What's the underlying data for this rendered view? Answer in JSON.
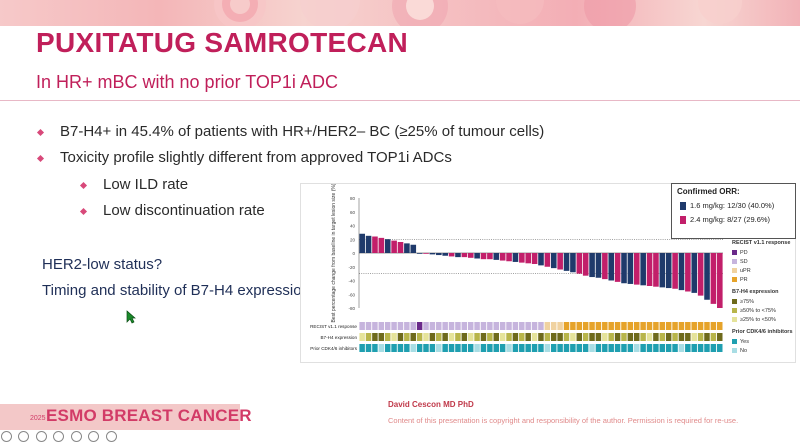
{
  "slide": {
    "title": "PUXITATUG SAMROTECAN",
    "subtitle": "In HR+ mBC with no prior TOP1i ADC",
    "bullets": [
      "B7-H4+ in 45.4% of patients with HR+/HER2– BC (≥25% of tumour cells)",
      "Toxicity profile slightly different from approved TOP1i ADCs"
    ],
    "sub_bullets": [
      "Low ILD rate",
      "Low discontinuation rate"
    ],
    "questions": [
      "HER2-low status?",
      "Timing and stability of B7-H4 expression?"
    ],
    "author": "David Cescon MD PhD",
    "copyright": "Content of this presentation is copyright and responsibility of the author. Permission is required for re-use.",
    "footer_logo": "ESMO BREAST CANCER",
    "footer_year": "2025"
  },
  "chart_data": {
    "type": "bar",
    "ylabel": "Best percentage change from baseline in target lesion size (%)",
    "ylim": [
      -80,
      80
    ],
    "yticks": [
      "80",
      "60",
      "40",
      "20",
      "0",
      "-20",
      "-40",
      "-60",
      "-80"
    ],
    "reference_lines": [
      20,
      -30
    ],
    "orr_legend": {
      "title": "Confirmed ORR:",
      "series": [
        {
          "name": "1.6 mg/kg: 12/30 (40.0%)",
          "color": "#1f3a6b"
        },
        {
          "name": "2.4 mg/kg: 8/27 (29.6%)",
          "color": "#c21f6a"
        }
      ]
    },
    "values": [
      28,
      25,
      24,
      22,
      20,
      18,
      16,
      14,
      12,
      0,
      0,
      -2,
      -3,
      -4,
      -5,
      -6,
      -6,
      -7,
      -8,
      -9,
      -9,
      -10,
      -11,
      -12,
      -13,
      -14,
      -15,
      -16,
      -18,
      -20,
      -22,
      -24,
      -26,
      -28,
      -30,
      -33,
      -35,
      -36,
      -38,
      -40,
      -42,
      -44,
      -45,
      -46,
      -47,
      -48,
      -49,
      -50,
      -51,
      -52,
      -54,
      -56,
      -58,
      -62,
      -68,
      -74,
      -80
    ],
    "dose_groups": [
      "b",
      "b",
      "p",
      "p",
      "b",
      "p",
      "p",
      "b",
      "b",
      "b",
      "p",
      "b",
      "b",
      "b",
      "p",
      "b",
      "p",
      "p",
      "b",
      "p",
      "p",
      "b",
      "p",
      "p",
      "b",
      "p",
      "p",
      "p",
      "b",
      "p",
      "b",
      "p",
      "b",
      "b",
      "p",
      "p",
      "b",
      "b",
      "p",
      "b",
      "p",
      "b",
      "b",
      "p",
      "b",
      "p",
      "p",
      "b",
      "b",
      "p",
      "b",
      "p",
      "b",
      "p",
      "b",
      "p",
      "p"
    ],
    "recist_response": [
      "SD",
      "SD",
      "SD",
      "SD",
      "SD",
      "SD",
      "SD",
      "SD",
      "SD",
      "PD",
      "SD",
      "SD",
      "SD",
      "SD",
      "SD",
      "SD",
      "SD",
      "SD",
      "SD",
      "SD",
      "SD",
      "SD",
      "SD",
      "SD",
      "SD",
      "SD",
      "SD",
      "SD",
      "SD",
      "uPR",
      "uPR",
      "uPR",
      "PR",
      "PR",
      "PR",
      "PR",
      "PR",
      "PR",
      "PR",
      "PR",
      "PR",
      "PR",
      "PR",
      "PR",
      "PR",
      "PR",
      "PR",
      "PR",
      "PR",
      "PR",
      "PR",
      "PR",
      "PR",
      "PR",
      "PR",
      "PR",
      "PR"
    ],
    "b7h4_expression": [
      "c",
      "b",
      "a",
      "a",
      "b",
      "c",
      "a",
      "b",
      "a",
      "b",
      "c",
      "a",
      "b",
      "a",
      "c",
      "b",
      "a",
      "c",
      "b",
      "a",
      "b",
      "a",
      "c",
      "b",
      "a",
      "b",
      "a",
      "c",
      "a",
      "b",
      "a",
      "a",
      "b",
      "c",
      "a",
      "b",
      "a",
      "a",
      "c",
      "b",
      "a",
      "b",
      "a",
      "a",
      "b",
      "c",
      "a",
      "b",
      "a",
      "b",
      "a",
      "a",
      "c",
      "b",
      "a",
      "b",
      "a"
    ],
    "prior_cdk46": [
      "y",
      "y",
      "y",
      "n",
      "y",
      "y",
      "y",
      "y",
      "n",
      "y",
      "y",
      "y",
      "n",
      "y",
      "y",
      "y",
      "y",
      "y",
      "n",
      "y",
      "y",
      "y",
      "y",
      "n",
      "y",
      "y",
      "y",
      "y",
      "y",
      "n",
      "y",
      "y",
      "y",
      "y",
      "y",
      "y",
      "n",
      "y",
      "y",
      "y",
      "y",
      "y",
      "y",
      "n",
      "y",
      "y",
      "y",
      "y",
      "y",
      "y",
      "n",
      "y",
      "y",
      "y",
      "y",
      "y",
      "y"
    ],
    "track_labels": [
      "RECIST v1.1 response",
      "B7-H4 expression",
      "Prior CDK4/6 inhibitors"
    ],
    "legend_groups": [
      {
        "title": "RECIST v1.1 response",
        "items": [
          {
            "label": "PD",
            "color": "#6a2a8a"
          },
          {
            "label": "SD",
            "color": "#c6b4dd"
          },
          {
            "label": "uPR",
            "color": "#f0d2a0"
          },
          {
            "label": "PR",
            "color": "#e6a32a"
          }
        ]
      },
      {
        "title": "B7-H4 expression",
        "items": [
          {
            "label": "≥75%",
            "color": "#6e6a1c"
          },
          {
            "label": "≥50% to <75%",
            "color": "#b8b54a"
          },
          {
            "label": "≥25% to <50%",
            "color": "#e5e39a"
          }
        ]
      },
      {
        "title": "Prior CDK4/6 inhibitors",
        "items": [
          {
            "label": "Yes",
            "color": "#1f9fb0"
          },
          {
            "label": "No",
            "color": "#a8dde4"
          }
        ]
      }
    ],
    "colors": {
      "b": "#1f3a6b",
      "p": "#c21f6a"
    }
  }
}
